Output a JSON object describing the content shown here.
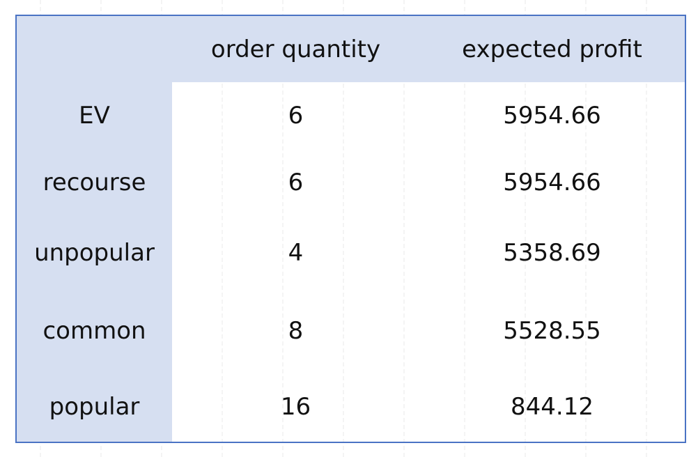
{
  "table": {
    "columns": [
      "",
      "order quantity",
      "expected profit"
    ],
    "rows": [
      {
        "label": "EV",
        "order_quantity": "6",
        "expected_profit": "5954.66"
      },
      {
        "label": "recourse",
        "order_quantity": "6",
        "expected_profit": "5954.66"
      },
      {
        "label": "unpopular",
        "order_quantity": "4",
        "expected_profit": "5358.69"
      },
      {
        "label": "common",
        "order_quantity": "8",
        "expected_profit": "5528.55"
      },
      {
        "label": "popular",
        "order_quantity": "16",
        "expected_profit": "844.12"
      }
    ]
  },
  "colors": {
    "header_fill": "#d6dff1",
    "border": "#4a73c4",
    "background": "#ffffff"
  }
}
